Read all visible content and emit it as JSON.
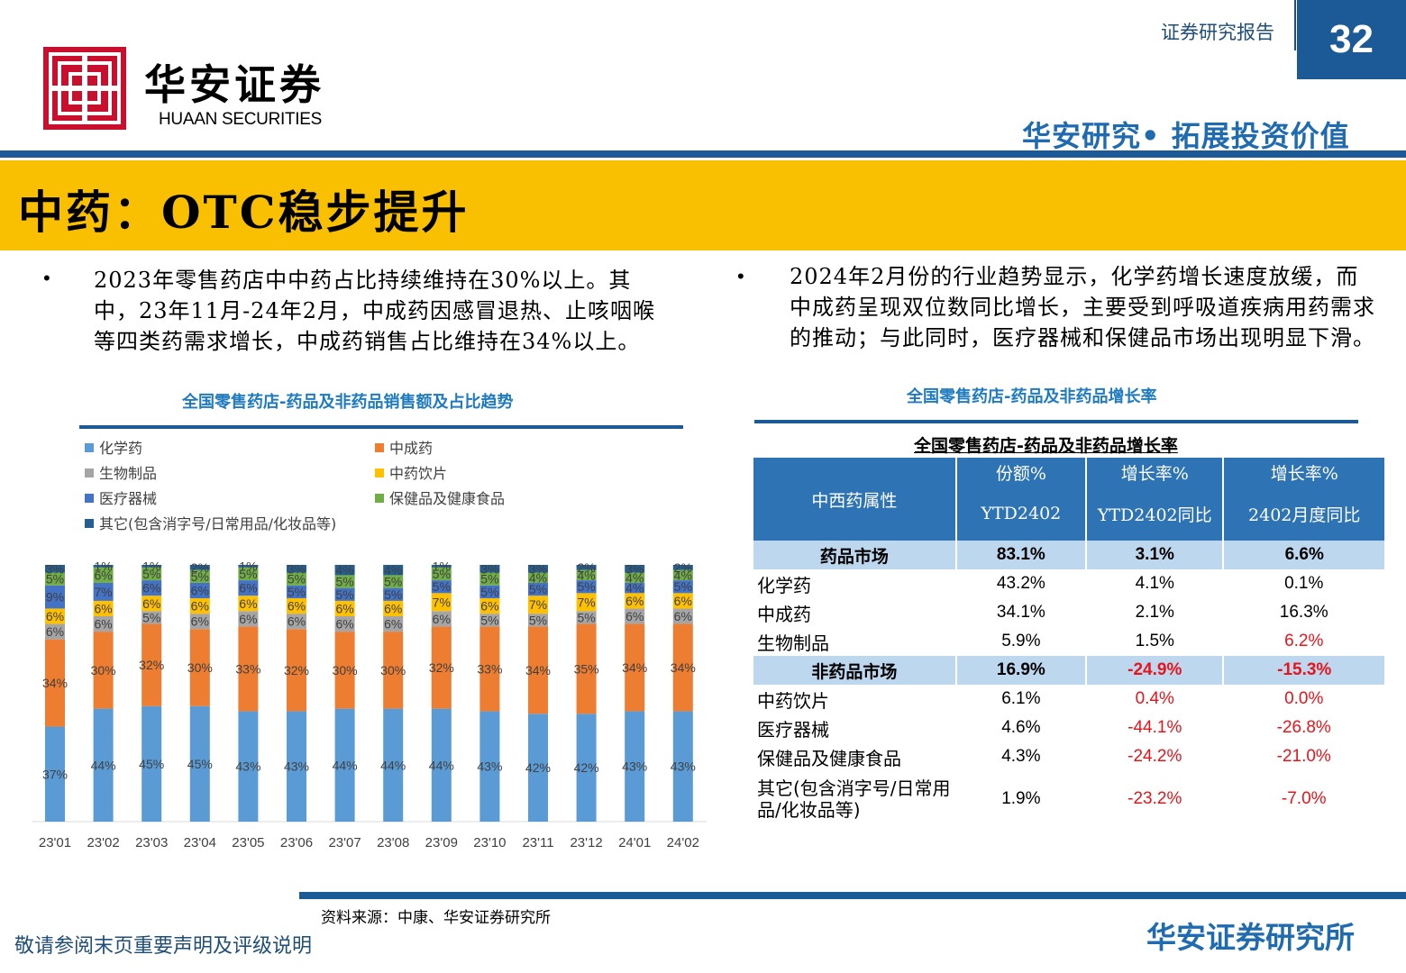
{
  "header": {
    "logo_cn": "华安证券",
    "logo_en": "HUAAN SECURITIES",
    "report_type": "证券研究报告",
    "page_number": "32",
    "tagline": "华安研究• 拓展投资价值"
  },
  "title": "中药：OTC稳步提升",
  "bullets": {
    "left": "2023年零售药店中中药占比持续维持在30%以上。其中，23年11月-24年2月，中成药因感冒退热、止咳咽喉等四类药需求增长，中成药销售占比维持在34%以上。",
    "right": "2024年2月份的行业趋势显示，化学药增长速度放缓，而中成药呈现双位数同比增长，主要受到呼吸道疾病用药需求的推动；与此同时，医疗器械和保健品市场出现明显下滑。"
  },
  "captions": {
    "left": "全国零售药店-药品及非药品销售额及占比趋势",
    "right": "全国零售药店-药品及非药品增长率"
  },
  "chart_data": {
    "type": "bar",
    "stacked": true,
    "categories": [
      "23'01",
      "23'02",
      "23'03",
      "23'04",
      "23'05",
      "23'06",
      "23'07",
      "23'08",
      "23'09",
      "23'10",
      "23'11",
      "23'12",
      "24'01",
      "24'02"
    ],
    "series": [
      {
        "name": "化学药",
        "color": "#5b9bd5",
        "values": [
          37,
          44,
          45,
          45,
          43,
          43,
          44,
          44,
          44,
          43,
          42,
          42,
          43,
          43
        ]
      },
      {
        "name": "中成药",
        "color": "#ed7d31",
        "values": [
          34,
          30,
          32,
          30,
          33,
          32,
          30,
          30,
          32,
          33,
          34,
          35,
          34,
          34
        ]
      },
      {
        "name": "生物制品",
        "color": "#a5a5a5",
        "values": [
          6,
          6,
          5,
          6,
          6,
          6,
          6,
          6,
          6,
          5,
          5,
          5,
          6,
          6
        ]
      },
      {
        "name": "中药饮片",
        "color": "#ffc000",
        "values": [
          6,
          6,
          6,
          6,
          6,
          6,
          6,
          6,
          7,
          6,
          7,
          7,
          6,
          6
        ]
      },
      {
        "name": "医疗器械",
        "color": "#4472c4",
        "values": [
          9,
          7,
          6,
          6,
          6,
          5,
          5,
          5,
          5,
          5,
          5,
          5,
          4,
          5
        ]
      },
      {
        "name": "保健品及健康食品",
        "color": "#70ad47",
        "values": [
          5,
          6,
          5,
          5,
          5,
          5,
          5,
          5,
          5,
          5,
          4,
          4,
          4,
          4
        ]
      },
      {
        "name": "其它(包含消字号/日常用品/化妆品等)",
        "color": "#255e91",
        "values": [
          3,
          1,
          1,
          2,
          1,
          3,
          4,
          4,
          1,
          3,
          3,
          2,
          3,
          2
        ]
      }
    ],
    "ylim": [
      0,
      100
    ],
    "legend_position": "top",
    "grid": false
  },
  "table": {
    "title": "全国零售药店-药品及非药品增长率",
    "header_col0": "中西药属性",
    "header_top": [
      "份额%",
      "增长率%",
      "增长率%"
    ],
    "header_bottom": [
      "YTD2402",
      "YTD2402同比",
      "2402月度同比"
    ],
    "rows": [
      {
        "name": "药品市场",
        "section": true,
        "c1": "83.1%",
        "c2": "3.1%",
        "c3": "6.6%",
        "n2": false,
        "n3": false
      },
      {
        "name": "化学药",
        "section": false,
        "c1": "43.2%",
        "c2": "4.1%",
        "c3": "0.1%",
        "n2": false,
        "n3": false
      },
      {
        "name": "中成药",
        "section": false,
        "c1": "34.1%",
        "c2": "2.1%",
        "c3": "16.3%",
        "n2": false,
        "n3": false
      },
      {
        "name": "生物制品",
        "section": false,
        "c1": "5.9%",
        "c2": "1.5%",
        "c3": "6.2%",
        "n2": false,
        "n3": true
      },
      {
        "name": "非药品市场",
        "section": true,
        "c1": "16.9%",
        "c2": "-24.9%",
        "c3": "-15.3%",
        "n2": true,
        "n3": true
      },
      {
        "name": "中药饮片",
        "section": false,
        "c1": "6.1%",
        "c2": "0.4%",
        "c3": "0.0%",
        "n2": true,
        "n3": true
      },
      {
        "name": "医疗器械",
        "section": false,
        "c1": "4.6%",
        "c2": "-44.1%",
        "c3": "-26.8%",
        "n2": true,
        "n3": true
      },
      {
        "name": "保健品及健康食品",
        "section": false,
        "c1": "4.3%",
        "c2": "-24.2%",
        "c3": "-21.0%",
        "n2": true,
        "n3": true
      },
      {
        "name": "其它(包含消字号/日常用品/化妆品等)",
        "section": false,
        "c1": "1.9%",
        "c2": "-23.2%",
        "c3": "-7.0%",
        "n2": true,
        "n3": true
      }
    ]
  },
  "footer": {
    "source": "资料来源：中康、华安证券研究所",
    "disclaimer": "敬请参阅末页重要声明及评级说明",
    "brand": "华安证券研究所"
  }
}
